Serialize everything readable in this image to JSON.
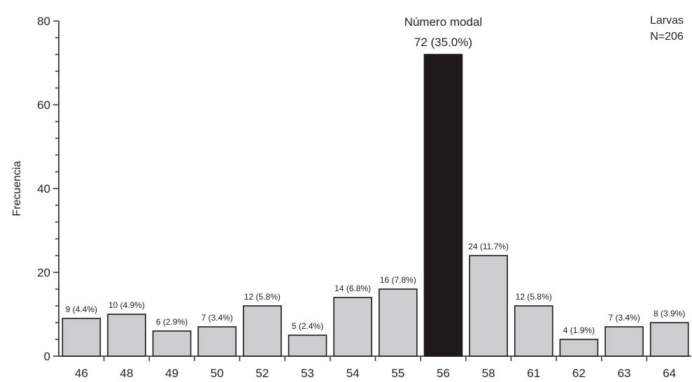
{
  "chart_data": {
    "type": "bar",
    "ylabel": "Frecuencia",
    "ylim": [
      0,
      80
    ],
    "yticks": [
      0,
      20,
      40,
      60,
      80
    ],
    "categories": [
      "46",
      "48",
      "49",
      "50",
      "52",
      "53",
      "54",
      "55",
      "56",
      "58",
      "61",
      "62",
      "63",
      "64"
    ],
    "values": [
      9,
      10,
      6,
      7,
      12,
      5,
      14,
      16,
      72,
      24,
      12,
      4,
      7,
      8
    ],
    "data_labels": [
      "9 (4.4%)",
      "10 (4.9%)",
      "6 (2.9%)",
      "7 (3.4%)",
      "12 (5.8%)",
      "5 (2.4%)",
      "14 (6.8%)",
      "16 (7.8%)",
      "72 (35.0%)",
      "24 (11.7%)",
      "12 (5.8%)",
      "4 (1.9%)",
      "7 (3.4%)",
      "8 (3.9%)"
    ],
    "highlight_index": 8,
    "highlight_title": "Número modal",
    "legend": {
      "line1": "Larvas",
      "line2": "N=206",
      "position": "top-right"
    },
    "grid": false,
    "colors": {
      "bar": "#cdcdcf",
      "highlight": "#1e1a1b",
      "stroke": "#1a1a1a"
    }
  }
}
